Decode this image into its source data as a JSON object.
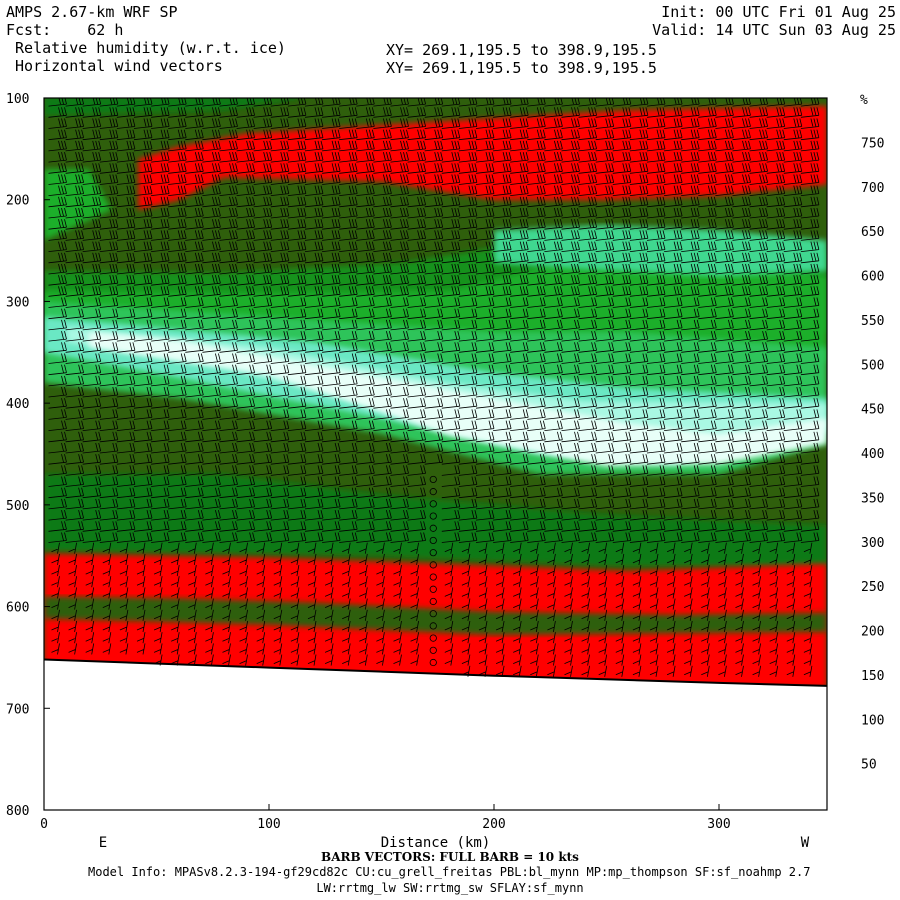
{
  "header": {
    "model_title": "AMPS 2.67-km WRF SP",
    "forecast_label": "Fcst:",
    "forecast_value": "62 h",
    "init_label": "Init:",
    "init_value": "00 UTC Fri 01 Aug 25",
    "valid_label": "Valid:",
    "valid_value": "14 UTC Sun 03 Aug 25",
    "field_1": "Relative humidity (w.r.t. ice)",
    "field_2": "Horizontal wind vectors",
    "xy_1": "XY= 269.1,195.5 to 398.9,195.5",
    "xy_2": "XY= 269.1,195.5 to 398.9,195.5"
  },
  "footer": {
    "barb_note": "BARB VECTORS:  FULL BARB = 10 kts",
    "model_info": "Model Info: MPASv8.2.3-194-gf29cd82c CU:cu_grell_freitas PBL:bl_mynn MP:mp_thompson SF:sf_noahmp 2.7",
    "model_info_2": "LW:rrtmg_lw SW:rrtmg_sw SFLAY:sf_mynn"
  },
  "colors": {
    "frame": "#000000",
    "background": "#ffffff"
  },
  "chart_data": {
    "type": "heatmap",
    "title": "Relative humidity (w.r.t. ice)",
    "overlay": "Horizontal wind vectors (barbs)",
    "xlabel": "Distance (km)",
    "x_range": [
      0,
      348
    ],
    "x_ticks": [
      0,
      100,
      200,
      300
    ],
    "x_direction_labels": {
      "left": "E",
      "right": "W"
    },
    "ylabel": "",
    "y_range": [
      100,
      800
    ],
    "y_ticks": [
      100,
      200,
      300,
      400,
      500,
      600,
      700,
      800
    ],
    "y_inverted": true,
    "colorbar": {
      "unit": "%",
      "tick_labels": [
        50,
        100,
        150,
        200,
        250,
        300,
        350,
        400,
        450,
        500,
        550,
        600,
        650,
        700,
        750
      ],
      "bins": [
        {
          "from": 0,
          "to": 10,
          "color": "#ffffff"
        },
        {
          "from": 10,
          "to": 20,
          "color": "#ffffff"
        },
        {
          "from": 20,
          "to": 30,
          "color": "#f4fffa"
        },
        {
          "from": 30,
          "to": 40,
          "color": "#d9fff0"
        },
        {
          "from": 40,
          "to": 50,
          "color": "#a9f8e3"
        },
        {
          "from": 50,
          "to": 60,
          "color": "#6be8c4"
        },
        {
          "from": 60,
          "to": 70,
          "color": "#3fd890"
        },
        {
          "from": 70,
          "to": 80,
          "color": "#2ec45a"
        },
        {
          "from": 80,
          "to": 90,
          "color": "#1faf2a"
        },
        {
          "from": 90,
          "to": 100,
          "color": "#14921a"
        },
        {
          "from": 100,
          "to": 110,
          "color": "#0b7a12"
        },
        {
          "from": 110,
          "to": 800,
          "color": "#2f5f0c"
        },
        {
          "from": 120,
          "to": 800,
          "color": "#ff0000"
        }
      ],
      "legend_stack": [
        "#ffffff",
        "#ffffff",
        "#f4fffa",
        "#d9fff0",
        "#a9f8e3",
        "#6be8c4",
        "#3fd890",
        "#2ec45a",
        "#1faf2a",
        "#14921a",
        "#0b7a12",
        "#2f5f0c",
        "#ff0000"
      ]
    },
    "cross_section_layers": [
      {
        "p_top": 100,
        "p_bottom": 110,
        "field": "dark-green",
        "note": "top rim"
      },
      {
        "p_top": 110,
        "p_bottom": 190,
        "field": "red",
        "note": "upper moist band, eastern half thinner"
      },
      {
        "p_top": 190,
        "p_bottom": 290,
        "field": "dark-green"
      },
      {
        "p_top": 290,
        "p_bottom": 470,
        "field": "green-to-white",
        "note": "dry tongue sloping down to west"
      },
      {
        "p_top": 470,
        "p_bottom": 550,
        "field": "dark-green"
      },
      {
        "p_top": 550,
        "p_bottom": 660,
        "field": "red",
        "note": "low-level moist layer"
      }
    ],
    "terrain_surface_p": {
      "x": [
        0,
        100,
        200,
        300,
        348
      ],
      "p": [
        652,
        660,
        668,
        675,
        678
      ]
    },
    "calm_column_x": 173,
    "barb_note": "FULL BARB = 10 kts"
  }
}
